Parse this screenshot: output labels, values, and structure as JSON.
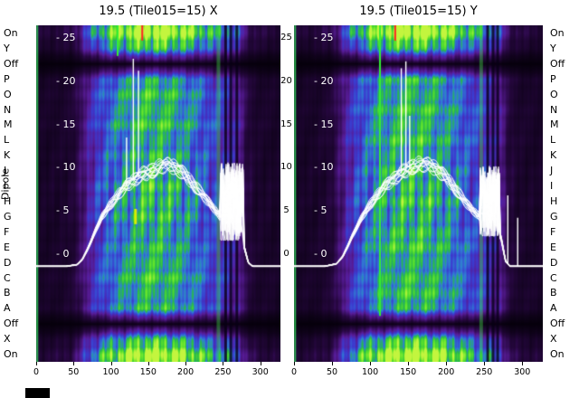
{
  "figure": {
    "ylabel": "Dipole",
    "bg": "#ffffff"
  },
  "panels": [
    {
      "title": "19.5 (Tile015=15) X"
    },
    {
      "title": "19.5 (Tile015=15) Y"
    }
  ],
  "dipole_labels": [
    "On",
    "Y",
    "Off",
    "P",
    "O",
    "N",
    "M",
    "L",
    "K",
    "J",
    "I",
    "H",
    "G",
    "F",
    "E",
    "D",
    "C",
    "B",
    "A",
    "Off",
    "X",
    "On"
  ],
  "chart_data": [
    {
      "type": "heatmap",
      "title": "19.5 (Tile015=15) X",
      "x_max": 327,
      "x_ticks": [
        0,
        50,
        100,
        150,
        200,
        250,
        300
      ],
      "y_ticks": [
        25,
        20,
        15,
        10,
        5,
        0
      ],
      "y_map": {
        "v0": 253,
        "scale": 9.56
      },
      "line_color": "#ffffff",
      "colormap": [
        [
          0,
          "#05000a"
        ],
        [
          0.14,
          "#26073f"
        ],
        [
          0.3,
          "#571b96"
        ],
        [
          0.44,
          "#3b3bd0"
        ],
        [
          0.58,
          "#2f7fd4"
        ],
        [
          0.7,
          "#28b84c"
        ],
        [
          0.84,
          "#59e22b"
        ],
        [
          1,
          "#c3f53e"
        ]
      ],
      "rows": [
        {
          "label": "On",
          "kind": "on",
          "gain": 1.25
        },
        {
          "label": "Y",
          "kind": "normal",
          "gain": 1.02
        },
        {
          "label": "Off",
          "kind": "off",
          "gain": 0.05
        },
        {
          "label": "P",
          "kind": "normal",
          "gain": 0.92
        },
        {
          "label": "O",
          "kind": "normal",
          "gain": 1.05
        },
        {
          "label": "N",
          "kind": "normal",
          "gain": 0.97
        },
        {
          "label": "M",
          "kind": "normal",
          "gain": 1.08
        },
        {
          "label": "L",
          "kind": "normal",
          "gain": 0.9
        },
        {
          "label": "K",
          "kind": "normal",
          "gain": 1.0
        },
        {
          "label": "J",
          "kind": "normal",
          "gain": 0.94
        },
        {
          "label": "I",
          "kind": "normal",
          "gain": 1.06
        },
        {
          "label": "H",
          "kind": "normal",
          "gain": 0.98
        },
        {
          "label": "G",
          "kind": "normal",
          "gain": 1.03
        },
        {
          "label": "F",
          "kind": "normal",
          "gain": 0.91
        },
        {
          "label": "E",
          "kind": "normal",
          "gain": 1.0
        },
        {
          "label": "D",
          "kind": "normal",
          "gain": 0.95
        },
        {
          "label": "C",
          "kind": "normal",
          "gain": 1.07
        },
        {
          "label": "B",
          "kind": "normal",
          "gain": 0.93
        },
        {
          "label": "A",
          "kind": "normal",
          "gain": 1.0
        },
        {
          "label": "Off",
          "kind": "off",
          "gain": 0.05
        },
        {
          "label": "X",
          "kind": "normal",
          "gain": 1.0
        },
        {
          "label": "On",
          "kind": "on",
          "gain": 1.25
        }
      ],
      "profile_x": [
        0,
        30,
        48,
        58,
        68,
        80,
        95,
        110,
        130,
        150,
        170,
        190,
        210,
        230,
        245,
        258,
        270,
        282,
        295,
        327
      ],
      "profile": [
        0.1,
        0.11,
        0.14,
        0.25,
        0.4,
        0.55,
        0.68,
        0.78,
        0.88,
        0.95,
        0.92,
        0.85,
        0.75,
        0.62,
        0.55,
        0.5,
        0.42,
        0.18,
        0.12,
        0.1
      ],
      "bandpass_x": [
        0,
        40,
        55,
        62,
        68,
        74,
        80,
        88,
        96,
        104,
        112,
        120,
        128,
        136,
        144,
        152,
        160,
        168,
        176,
        184,
        192,
        200,
        210,
        220,
        230,
        240,
        246,
        278,
        284,
        290,
        327
      ],
      "bandpass_y": [
        -1.4,
        -1.4,
        -1.2,
        -0.6,
        0.4,
        1.6,
        2.9,
        4.3,
        5.4,
        6.3,
        7.1,
        7.8,
        8.4,
        8.9,
        9.3,
        9.6,
        9.9,
        10.2,
        10.3,
        10.1,
        9.7,
        9.1,
        8.2,
        7.2,
        6.1,
        5.0,
        4.4,
        1.0,
        -1.0,
        -1.4,
        -1.4
      ],
      "noise": {
        "x0": 246,
        "x1": 278,
        "min": 1.5,
        "max": 10.6
      },
      "spikes": [
        {
          "ch": 121,
          "v": 13.5
        },
        {
          "ch": 130,
          "v": 22.6
        },
        {
          "ch": 137,
          "v": 21.2
        }
      ],
      "n_lines": 13,
      "dark_cols": [
        253,
        260,
        268
      ],
      "bright_cols": [
        {
          "ch": 1.5,
          "color": "rgba(50,210,90,0.8)",
          "w": 2
        },
        {
          "ch": 244,
          "color": "rgba(60,220,60,0.4)",
          "w": 4
        }
      ],
      "marks": [
        {
          "ch": 109,
          "row0": 0,
          "row1": 1,
          "w": 2,
          "color": "#33ee33"
        },
        {
          "ch": 142,
          "row0": 0,
          "row1": 0,
          "w": 2,
          "color": "#ff2222"
        },
        {
          "ch": 133,
          "row0": 12,
          "row1": 12,
          "w": 3,
          "color": "#d8ee00"
        }
      ]
    },
    {
      "type": "heatmap",
      "title": "19.5 (Tile015=15) Y",
      "x_max": 327,
      "x_ticks": [
        0,
        50,
        100,
        150,
        200,
        250,
        300
      ],
      "y_ticks": [
        25,
        20,
        15,
        10,
        5,
        0
      ],
      "y_map": {
        "v0": 253,
        "scale": 9.56
      },
      "line_color": "#ffffff",
      "colormap": [
        [
          0,
          "#05000a"
        ],
        [
          0.14,
          "#26073f"
        ],
        [
          0.3,
          "#571b96"
        ],
        [
          0.44,
          "#3b3bd0"
        ],
        [
          0.58,
          "#2f7fd4"
        ],
        [
          0.7,
          "#28b84c"
        ],
        [
          0.84,
          "#59e22b"
        ],
        [
          1,
          "#c3f53e"
        ]
      ],
      "rows": [
        {
          "label": "On",
          "kind": "on",
          "gain": 1.25
        },
        {
          "label": "Y",
          "kind": "normal",
          "gain": 0.98
        },
        {
          "label": "Off",
          "kind": "off",
          "gain": 0.05
        },
        {
          "label": "P",
          "kind": "normal",
          "gain": 1.0
        },
        {
          "label": "O",
          "kind": "normal",
          "gain": 0.93
        },
        {
          "label": "N",
          "kind": "normal",
          "gain": 1.06
        },
        {
          "label": "M",
          "kind": "normal",
          "gain": 0.96
        },
        {
          "label": "L",
          "kind": "normal",
          "gain": 1.04
        },
        {
          "label": "K",
          "kind": "normal",
          "gain": 0.92
        },
        {
          "label": "J",
          "kind": "normal",
          "gain": 1.02
        },
        {
          "label": "I",
          "kind": "normal",
          "gain": 0.97
        },
        {
          "label": "H",
          "kind": "normal",
          "gain": 1.05
        },
        {
          "label": "G",
          "kind": "normal",
          "gain": 0.94
        },
        {
          "label": "F",
          "kind": "normal",
          "gain": 1.0
        },
        {
          "label": "E",
          "kind": "normal",
          "gain": 1.06
        },
        {
          "label": "D",
          "kind": "normal",
          "gain": 0.92
        },
        {
          "label": "C",
          "kind": "normal",
          "gain": 1.0
        },
        {
          "label": "B",
          "kind": "normal",
          "gain": 1.04
        },
        {
          "label": "A",
          "kind": "normal",
          "gain": 0.95
        },
        {
          "label": "Off",
          "kind": "off",
          "gain": 0.05
        },
        {
          "label": "X",
          "kind": "normal",
          "gain": 1.02
        },
        {
          "label": "On",
          "kind": "on",
          "gain": 1.25
        }
      ],
      "profile_x": [
        0,
        30,
        48,
        58,
        68,
        80,
        95,
        110,
        130,
        150,
        170,
        190,
        210,
        230,
        245,
        258,
        270,
        282,
        295,
        327
      ],
      "profile": [
        0.1,
        0.11,
        0.15,
        0.27,
        0.42,
        0.57,
        0.7,
        0.8,
        0.9,
        0.95,
        0.93,
        0.86,
        0.76,
        0.63,
        0.56,
        0.5,
        0.4,
        0.17,
        0.12,
        0.1
      ],
      "bandpass_x": [
        0,
        40,
        56,
        64,
        70,
        76,
        84,
        92,
        100,
        108,
        116,
        124,
        132,
        140,
        148,
        156,
        164,
        172,
        180,
        188,
        196,
        204,
        214,
        224,
        234,
        244,
        272,
        278,
        284,
        327
      ],
      "bandpass_y": [
        -1.4,
        -1.4,
        -1.1,
        -0.3,
        0.8,
        2.0,
        3.4,
        4.7,
        5.8,
        6.7,
        7.5,
        8.2,
        8.8,
        9.3,
        9.8,
        10.2,
        10.4,
        10.4,
        10.2,
        9.8,
        9.2,
        8.5,
        7.4,
        6.2,
        5.1,
        4.3,
        2.0,
        -0.8,
        -1.4,
        -1.4
      ],
      "noise": {
        "x0": 244,
        "x1": 270,
        "min": 2.0,
        "max": 10.2
      },
      "spikes": [
        {
          "ch": 141,
          "v": 21.5
        },
        {
          "ch": 147,
          "v": 22.3
        },
        {
          "ch": 152,
          "v": 16.0
        },
        {
          "ch": 281,
          "v": 6.8
        },
        {
          "ch": 294,
          "v": 4.2
        }
      ],
      "n_lines": 13,
      "dark_cols": [
        254,
        261,
        267
      ],
      "bright_cols": [
        {
          "ch": 1.5,
          "color": "rgba(50,210,90,0.8)",
          "w": 2
        },
        {
          "ch": 246,
          "color": "rgba(60,220,60,0.4)",
          "w": 4
        }
      ],
      "marks": [
        {
          "ch": 113,
          "row0": 0,
          "row1": 18,
          "w": 2,
          "color": "#33ee33"
        },
        {
          "ch": 133,
          "row0": 0,
          "row1": 0,
          "w": 2,
          "color": "#ff2222"
        }
      ]
    }
  ]
}
